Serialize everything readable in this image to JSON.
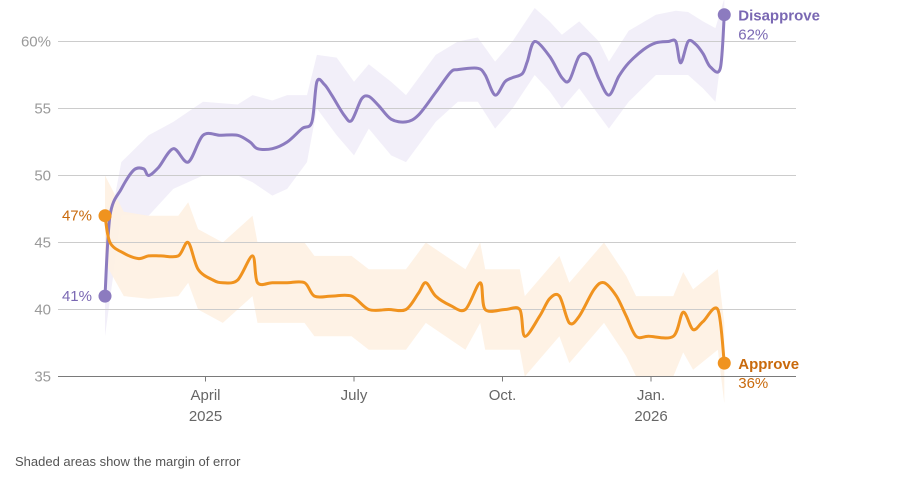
{
  "chart_data": {
    "type": "line",
    "title": "",
    "xlabel": "",
    "ylabel": "",
    "ylim": [
      34,
      62.5
    ],
    "y_ticks": [
      35,
      40,
      45,
      50,
      55,
      60
    ],
    "y_tick_labels": [
      "35",
      "40",
      "45",
      "50",
      "55",
      "60%"
    ],
    "x_tick_marks": [
      {
        "label": "April",
        "sublabel": "2025",
        "month": 2.0
      },
      {
        "label": "July",
        "sublabel": "",
        "month": 5.0
      },
      {
        "label": "Oct.",
        "sublabel": "",
        "month": 8.0
      },
      {
        "label": "Jan.",
        "sublabel": "2026",
        "month": 11.0
      }
    ],
    "x_unit": "months since Jan. 2025",
    "series": [
      {
        "name": "Disapprove",
        "color": "#8c7bbf",
        "band_color": "#f1edf8",
        "start_label": "41%",
        "end_label": "62%",
        "points": [
          [
            -0.03,
            41
          ],
          [
            0.07,
            47
          ],
          [
            0.3,
            49
          ],
          [
            0.55,
            50.4
          ],
          [
            0.75,
            50.5
          ],
          [
            0.85,
            50
          ],
          [
            1.05,
            50.6
          ],
          [
            1.35,
            52
          ],
          [
            1.65,
            51
          ],
          [
            1.95,
            53
          ],
          [
            2.3,
            53
          ],
          [
            2.65,
            53
          ],
          [
            2.9,
            52.5
          ],
          [
            3.05,
            52
          ],
          [
            3.35,
            52
          ],
          [
            3.65,
            52.5
          ],
          [
            3.95,
            53.5
          ],
          [
            4.15,
            54
          ],
          [
            4.25,
            57
          ],
          [
            4.4,
            56.8
          ],
          [
            4.55,
            56
          ],
          [
            4.8,
            54.5
          ],
          [
            4.95,
            54.1
          ],
          [
            5.15,
            55.7
          ],
          [
            5.3,
            55.9
          ],
          [
            5.5,
            55.2
          ],
          [
            5.75,
            54.2
          ],
          [
            6.05,
            54
          ],
          [
            6.3,
            54.5
          ],
          [
            6.65,
            56.2
          ],
          [
            6.95,
            57.7
          ],
          [
            7.1,
            57.9
          ],
          [
            7.5,
            58
          ],
          [
            7.65,
            57.5
          ],
          [
            7.85,
            56
          ],
          [
            8.05,
            57
          ],
          [
            8.2,
            57.3
          ],
          [
            8.4,
            57.6
          ],
          [
            8.5,
            58.5
          ],
          [
            8.65,
            60
          ],
          [
            8.95,
            58.9
          ],
          [
            9.2,
            57.3
          ],
          [
            9.35,
            57.1
          ],
          [
            9.55,
            58.9
          ],
          [
            9.75,
            58.9
          ],
          [
            9.95,
            57.2
          ],
          [
            10.15,
            56
          ],
          [
            10.35,
            57.4
          ],
          [
            10.55,
            58.4
          ],
          [
            10.85,
            59.4
          ],
          [
            11.1,
            59.9
          ],
          [
            11.35,
            60
          ],
          [
            11.5,
            60
          ],
          [
            11.6,
            58.4
          ],
          [
            11.75,
            60
          ],
          [
            11.9,
            59.8
          ],
          [
            12.05,
            59.1
          ],
          [
            12.2,
            58.1
          ],
          [
            12.4,
            58
          ],
          [
            12.48,
            62
          ]
        ],
        "band_upper": [
          [
            -0.03,
            44.5
          ],
          [
            0.3,
            51
          ],
          [
            0.85,
            53
          ],
          [
            1.35,
            54
          ],
          [
            1.95,
            55.5
          ],
          [
            2.65,
            55.3
          ],
          [
            2.95,
            56
          ],
          [
            3.35,
            55.6
          ],
          [
            3.65,
            56
          ],
          [
            4.05,
            56
          ],
          [
            4.25,
            59
          ],
          [
            4.65,
            58.8
          ],
          [
            5.0,
            57
          ],
          [
            5.3,
            58.3
          ],
          [
            5.75,
            57
          ],
          [
            6.05,
            56
          ],
          [
            6.65,
            59
          ],
          [
            7.1,
            60
          ],
          [
            7.5,
            60.3
          ],
          [
            7.85,
            58.5
          ],
          [
            8.2,
            60
          ],
          [
            8.65,
            62.5
          ],
          [
            8.95,
            61.5
          ],
          [
            9.2,
            60.5
          ],
          [
            9.55,
            61.5
          ],
          [
            9.95,
            60
          ],
          [
            10.15,
            58.5
          ],
          [
            10.55,
            60.8
          ],
          [
            11.1,
            62
          ],
          [
            11.5,
            62.3
          ],
          [
            11.75,
            62.2
          ],
          [
            12.05,
            61.5
          ],
          [
            12.3,
            61
          ],
          [
            12.48,
            63.2
          ]
        ],
        "band_lower": [
          [
            -0.03,
            38
          ],
          [
            0.3,
            47
          ],
          [
            0.85,
            47
          ],
          [
            1.35,
            49
          ],
          [
            1.95,
            50
          ],
          [
            2.65,
            50
          ],
          [
            2.95,
            49.5
          ],
          [
            3.35,
            48.5
          ],
          [
            3.65,
            49
          ],
          [
            4.05,
            51
          ],
          [
            4.25,
            55
          ],
          [
            4.65,
            53
          ],
          [
            5.0,
            51.5
          ],
          [
            5.3,
            53.5
          ],
          [
            5.75,
            51.5
          ],
          [
            6.05,
            51
          ],
          [
            6.65,
            54
          ],
          [
            7.1,
            55.5
          ],
          [
            7.5,
            55.5
          ],
          [
            7.85,
            53.5
          ],
          [
            8.2,
            55
          ],
          [
            8.65,
            57.5
          ],
          [
            8.95,
            56.3
          ],
          [
            9.2,
            55
          ],
          [
            9.55,
            56.5
          ],
          [
            9.95,
            54.5
          ],
          [
            10.15,
            53.5
          ],
          [
            10.55,
            55.5
          ],
          [
            11.1,
            57.5
          ],
          [
            11.5,
            57.5
          ],
          [
            11.75,
            57.5
          ],
          [
            12.05,
            56.5
          ],
          [
            12.3,
            55.5
          ],
          [
            12.48,
            60.5
          ]
        ]
      },
      {
        "name": "Approve",
        "color": "#f0931f",
        "band_color": "#fef1e2",
        "start_label": "47%",
        "end_label": "36%",
        "points": [
          [
            -0.03,
            47
          ],
          [
            0.07,
            45
          ],
          [
            0.35,
            44.2
          ],
          [
            0.65,
            43.8
          ],
          [
            0.85,
            44
          ],
          [
            1.1,
            44
          ],
          [
            1.45,
            44
          ],
          [
            1.65,
            45
          ],
          [
            1.85,
            43
          ],
          [
            2.15,
            42.2
          ],
          [
            2.35,
            42
          ],
          [
            2.65,
            42.2
          ],
          [
            2.95,
            44
          ],
          [
            3.05,
            42
          ],
          [
            3.35,
            42
          ],
          [
            3.65,
            42
          ],
          [
            4.0,
            42
          ],
          [
            4.2,
            41
          ],
          [
            4.55,
            41
          ],
          [
            4.95,
            41
          ],
          [
            5.3,
            40
          ],
          [
            5.7,
            40
          ],
          [
            6.05,
            40
          ],
          [
            6.3,
            41.2
          ],
          [
            6.45,
            42
          ],
          [
            6.65,
            41
          ],
          [
            6.95,
            40.3
          ],
          [
            7.25,
            40
          ],
          [
            7.55,
            42
          ],
          [
            7.65,
            40
          ],
          [
            8.05,
            40
          ],
          [
            8.35,
            40
          ],
          [
            8.45,
            38
          ],
          [
            8.75,
            39.5
          ],
          [
            8.95,
            40.8
          ],
          [
            9.15,
            41
          ],
          [
            9.35,
            39
          ],
          [
            9.55,
            39.5
          ],
          [
            9.85,
            41.5
          ],
          [
            10.05,
            42
          ],
          [
            10.3,
            41
          ],
          [
            10.5,
            39.5
          ],
          [
            10.7,
            38
          ],
          [
            10.95,
            38
          ],
          [
            11.45,
            38
          ],
          [
            11.65,
            39.8
          ],
          [
            11.85,
            38.5
          ],
          [
            12.05,
            39.1
          ],
          [
            12.35,
            40
          ],
          [
            12.48,
            36
          ]
        ],
        "band_upper": [
          [
            -0.03,
            50
          ],
          [
            0.35,
            47.3
          ],
          [
            0.85,
            47
          ],
          [
            1.45,
            47
          ],
          [
            1.65,
            48
          ],
          [
            1.85,
            46
          ],
          [
            2.35,
            45
          ],
          [
            2.95,
            47
          ],
          [
            3.05,
            45
          ],
          [
            4.0,
            45
          ],
          [
            4.2,
            44
          ],
          [
            4.95,
            44
          ],
          [
            5.3,
            43
          ],
          [
            6.05,
            43
          ],
          [
            6.45,
            45
          ],
          [
            7.25,
            43
          ],
          [
            7.55,
            45
          ],
          [
            7.65,
            43
          ],
          [
            8.35,
            43
          ],
          [
            8.45,
            41
          ],
          [
            9.15,
            44
          ],
          [
            9.35,
            42
          ],
          [
            10.05,
            45
          ],
          [
            10.5,
            42.5
          ],
          [
            10.7,
            41
          ],
          [
            11.45,
            41
          ],
          [
            11.65,
            42.8
          ],
          [
            11.85,
            41.5
          ],
          [
            12.35,
            43
          ],
          [
            12.48,
            39
          ]
        ],
        "band_lower": [
          [
            -0.03,
            43.5
          ],
          [
            0.35,
            41
          ],
          [
            0.85,
            40.8
          ],
          [
            1.45,
            41
          ],
          [
            1.65,
            42
          ],
          [
            1.85,
            40
          ],
          [
            2.35,
            39
          ],
          [
            2.95,
            41
          ],
          [
            3.05,
            39
          ],
          [
            4.0,
            39
          ],
          [
            4.2,
            38
          ],
          [
            4.95,
            38
          ],
          [
            5.3,
            37
          ],
          [
            6.05,
            37
          ],
          [
            6.45,
            39
          ],
          [
            7.25,
            37
          ],
          [
            7.55,
            39
          ],
          [
            7.65,
            37
          ],
          [
            8.35,
            37
          ],
          [
            8.45,
            35
          ],
          [
            9.15,
            38
          ],
          [
            9.35,
            36
          ],
          [
            10.05,
            39
          ],
          [
            10.5,
            36.5
          ],
          [
            10.7,
            35
          ],
          [
            11.45,
            35
          ],
          [
            11.65,
            36.8
          ],
          [
            11.85,
            35.5
          ],
          [
            12.35,
            37
          ],
          [
            12.48,
            33
          ]
        ]
      }
    ],
    "footnote": "Shaded areas show the margin of error"
  }
}
